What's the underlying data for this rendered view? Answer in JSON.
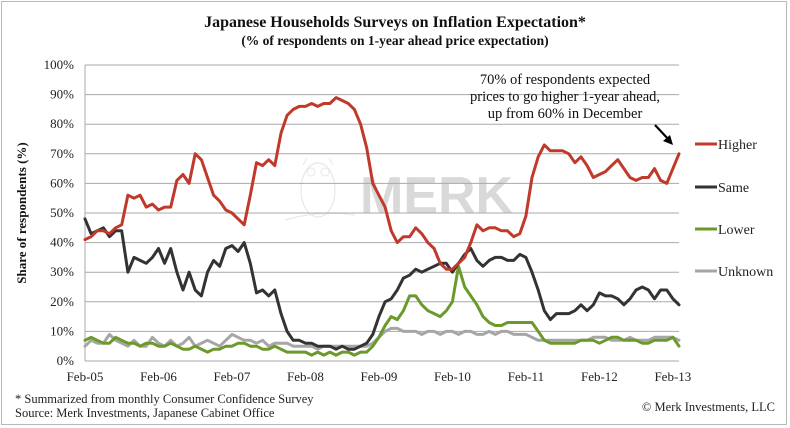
{
  "chart_data": {
    "type": "line",
    "title": "Japanese Households Surveys on Inflation Expectation*",
    "subtitle": "(% of respondents on 1-year ahead price expectation)",
    "xlabel": "",
    "ylabel": "Share of respondents (%)",
    "ylim": [
      0,
      100
    ],
    "yticks": [
      0,
      10,
      20,
      30,
      40,
      50,
      60,
      70,
      80,
      90,
      100
    ],
    "ytick_labels": [
      "0%",
      "10%",
      "20%",
      "30%",
      "40%",
      "50%",
      "60%",
      "70%",
      "80%",
      "90%",
      "100%"
    ],
    "x_start": "Feb-05",
    "x_end": "Feb-13",
    "x_frequency": "monthly",
    "xtick_labels": [
      "Feb-05",
      "Feb-06",
      "Feb-07",
      "Feb-08",
      "Feb-09",
      "Feb-10",
      "Feb-11",
      "Feb-12",
      "Feb-13"
    ],
    "grid": "horizontal",
    "legend_position": "right",
    "series": [
      {
        "name": "Higher",
        "color": "#c0392b",
        "values": [
          41,
          42,
          44,
          44,
          43,
          45,
          46,
          56,
          55,
          56,
          52,
          53,
          51,
          52,
          52,
          61,
          63,
          60,
          70,
          68,
          62,
          56,
          54,
          51,
          50,
          48,
          46,
          56,
          67,
          66,
          68,
          66,
          77,
          83,
          85,
          86,
          86,
          87,
          86,
          87,
          87,
          89,
          88,
          87,
          85,
          80,
          72,
          60,
          56,
          52,
          44,
          40,
          42,
          42,
          45,
          43,
          40,
          38,
          33,
          31,
          31,
          33,
          35,
          40,
          46,
          44,
          45,
          45,
          44,
          44,
          42,
          43,
          49,
          62,
          69,
          73,
          71,
          71,
          71,
          70,
          67,
          69,
          66,
          62,
          63,
          64,
          66,
          68,
          65,
          62,
          61,
          62,
          62,
          65,
          61,
          60,
          65,
          70
        ]
      },
      {
        "name": "Same",
        "color": "#333333",
        "values": [
          48,
          43,
          44,
          45,
          42,
          44,
          44,
          30,
          35,
          34,
          33,
          35,
          38,
          33,
          38,
          30,
          24,
          30,
          24,
          22,
          30,
          34,
          32,
          38,
          39,
          37,
          40,
          33,
          23,
          24,
          22,
          24,
          16,
          10,
          7,
          7,
          6,
          6,
          5,
          5,
          5,
          4,
          5,
          4,
          4,
          5,
          6,
          9,
          15,
          20,
          21,
          24,
          28,
          29,
          31,
          30,
          31,
          32,
          33,
          33,
          30,
          33,
          36,
          38,
          34,
          32,
          34,
          35,
          35,
          34,
          34,
          36,
          35,
          30,
          24,
          17,
          14,
          16,
          16,
          16,
          17,
          19,
          17,
          19,
          23,
          22,
          22,
          21,
          19,
          21,
          24,
          25,
          24,
          21,
          24,
          24,
          21,
          19
        ]
      },
      {
        "name": "Lower",
        "color": "#6b9a2a",
        "values": [
          7,
          8,
          7,
          6,
          6,
          8,
          7,
          6,
          6,
          5,
          6,
          6,
          5,
          5,
          6,
          5,
          4,
          4,
          5,
          4,
          3,
          4,
          4,
          5,
          5,
          6,
          6,
          5,
          5,
          4,
          4,
          5,
          4,
          3,
          3,
          3,
          3,
          2,
          3,
          2,
          3,
          2,
          3,
          3,
          2,
          3,
          3,
          5,
          8,
          12,
          15,
          14,
          17,
          22,
          22,
          19,
          17,
          16,
          15,
          17,
          20,
          32,
          25,
          22,
          19,
          15,
          13,
          12,
          12,
          13,
          13,
          13,
          13,
          13,
          10,
          7,
          6,
          6,
          6,
          6,
          6,
          7,
          7,
          7,
          6,
          7,
          8,
          8,
          7,
          7,
          7,
          6,
          6,
          7,
          7,
          7,
          8,
          5
        ]
      },
      {
        "name": "Unknown",
        "color": "#a6a6a6",
        "values": [
          5,
          7,
          6,
          6,
          9,
          7,
          6,
          5,
          7,
          5,
          5,
          8,
          6,
          5,
          7,
          5,
          6,
          8,
          5,
          6,
          7,
          6,
          5,
          7,
          9,
          8,
          7,
          7,
          6,
          7,
          5,
          6,
          6,
          6,
          5,
          5,
          5,
          5,
          4,
          5,
          5,
          5,
          5,
          5,
          5,
          5,
          5,
          6,
          8,
          10,
          11,
          11,
          10,
          10,
          10,
          9,
          10,
          10,
          9,
          10,
          10,
          9,
          10,
          10,
          9,
          9,
          10,
          9,
          10,
          10,
          9,
          9,
          9,
          8,
          7,
          7,
          7,
          7,
          7,
          7,
          7,
          7,
          7,
          8,
          8,
          8,
          7,
          7,
          7,
          8,
          7,
          7,
          7,
          8,
          8,
          8,
          8,
          7
        ]
      }
    ],
    "annotation": {
      "lines": [
        "70% of respondents expected",
        "prices to go higher 1-year ahead,",
        "up from 60% in December"
      ],
      "points_to": {
        "series": "Higher",
        "x": "Feb-13",
        "value": 70
      }
    },
    "watermark": "MERK"
  },
  "footer": {
    "note": "* Summarized from monthly Consumer Confidence Survey",
    "source": "Source: Merk Investments, Japanese Cabinet Office",
    "copyright": "© Merk Investments, LLC"
  }
}
